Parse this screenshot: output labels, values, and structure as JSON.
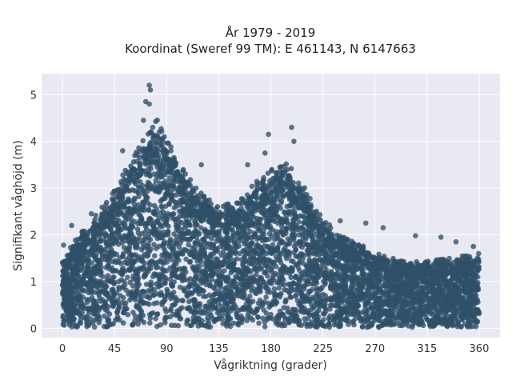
{
  "chart_data": {
    "type": "scatter",
    "title_line1": "År 1979 - 2019",
    "title_line2": "Koordinat (Sweref 99 TM): E 461143, N 6147663",
    "xlabel": "Vågriktning (grader)",
    "ylabel": "Signifikant våghöjd (m)",
    "xlim": [
      -18,
      378
    ],
    "ylim": [
      -0.2,
      5.45
    ],
    "xticks": [
      0,
      45,
      90,
      135,
      180,
      225,
      270,
      315,
      360
    ],
    "yticks": [
      0,
      1,
      2,
      3,
      4,
      5
    ],
    "grid": true,
    "envelope": {
      "x": [
        0,
        15,
        30,
        45,
        60,
        75,
        82,
        90,
        105,
        120,
        135,
        150,
        165,
        180,
        195,
        210,
        225,
        240,
        255,
        270,
        285,
        300,
        315,
        330,
        345,
        360
      ],
      "y_max": [
        1.4,
        1.9,
        2.3,
        2.8,
        3.4,
        4.0,
        4.2,
        3.8,
        3.2,
        2.7,
        2.5,
        2.5,
        2.9,
        3.2,
        3.3,
        2.8,
        2.2,
        1.9,
        1.7,
        1.55,
        1.4,
        1.35,
        1.35,
        1.4,
        1.45,
        1.5
      ]
    },
    "outliers": [
      {
        "x": 75,
        "y": 5.2
      },
      {
        "x": 76,
        "y": 5.1
      },
      {
        "x": 72,
        "y": 4.85
      },
      {
        "x": 75,
        "y": 4.8
      },
      {
        "x": 70,
        "y": 4.45
      },
      {
        "x": 78,
        "y": 4.3
      },
      {
        "x": 88,
        "y": 4.1
      },
      {
        "x": 198,
        "y": 4.3
      },
      {
        "x": 178,
        "y": 4.15
      },
      {
        "x": 200,
        "y": 4.0
      },
      {
        "x": 175,
        "y": 3.75
      },
      {
        "x": 52,
        "y": 3.8
      },
      {
        "x": 120,
        "y": 3.5
      },
      {
        "x": 160,
        "y": 3.5
      },
      {
        "x": 8,
        "y": 2.2
      },
      {
        "x": 25,
        "y": 2.45
      },
      {
        "x": 240,
        "y": 2.3
      },
      {
        "x": 262,
        "y": 2.25
      },
      {
        "x": 277,
        "y": 2.15
      },
      {
        "x": 305,
        "y": 1.98
      },
      {
        "x": 327,
        "y": 1.95
      },
      {
        "x": 340,
        "y": 1.85
      },
      {
        "x": 355,
        "y": 1.75
      },
      {
        "x": 1,
        "y": 1.78
      }
    ],
    "point_color": "#2e5068",
    "background_color": "#e9e9f1",
    "grid_color": "#ffffff"
  }
}
